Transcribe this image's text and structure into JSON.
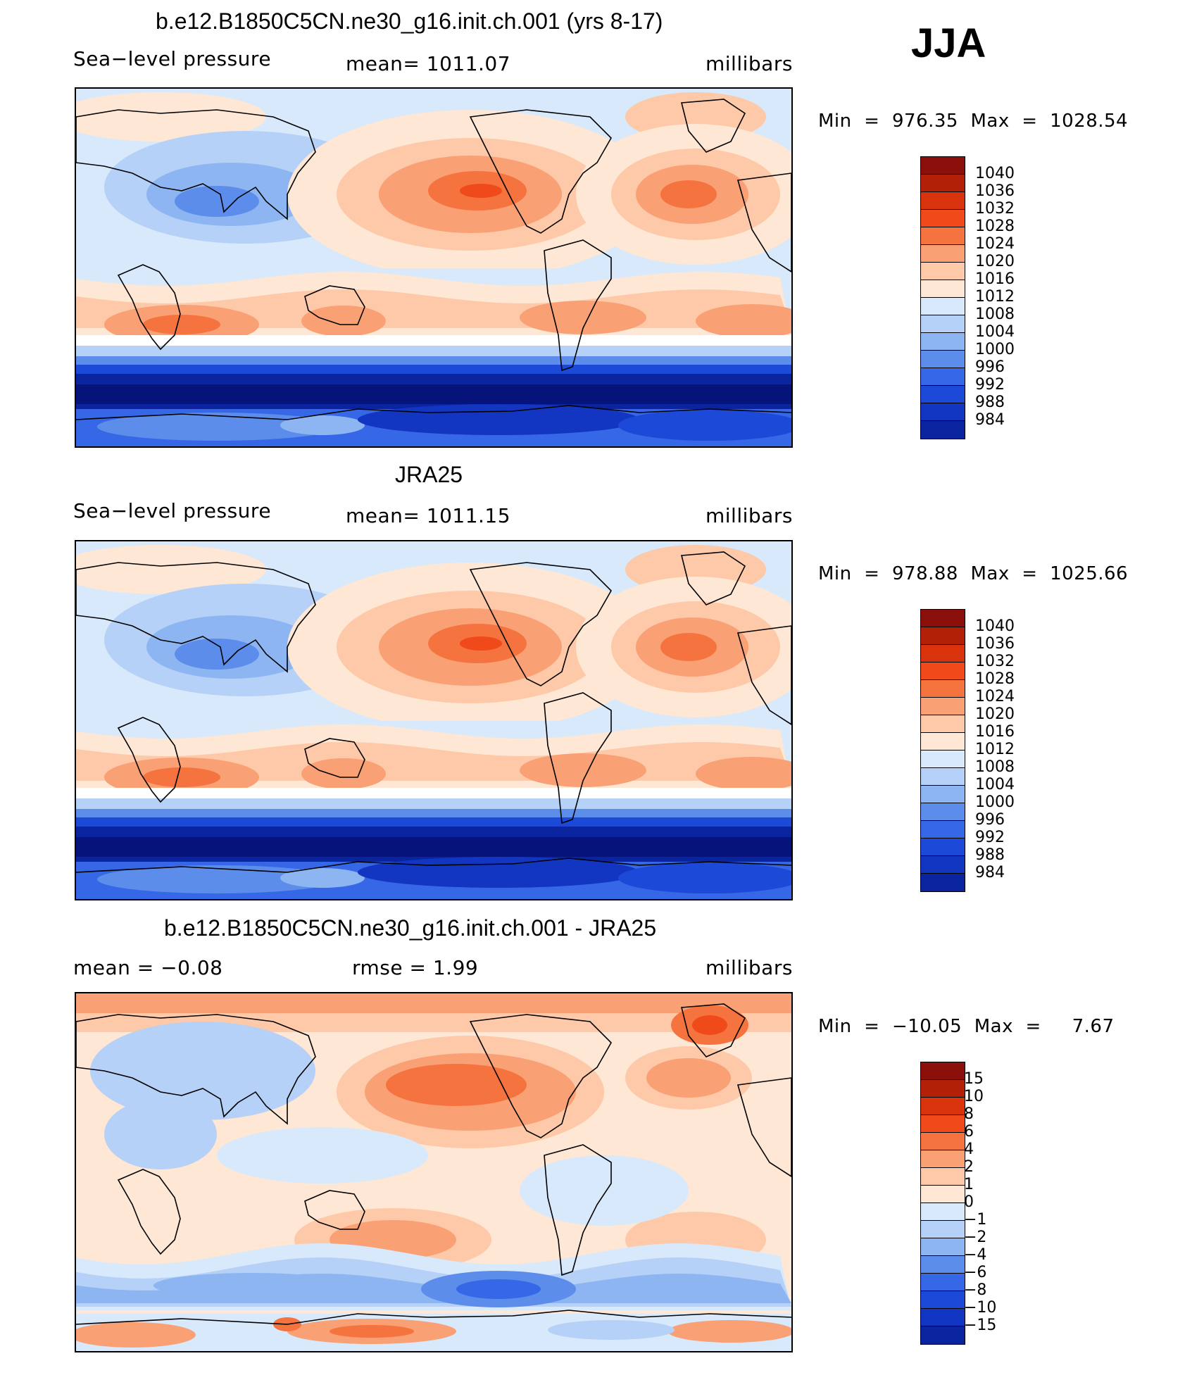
{
  "season": "JJA",
  "panels": [
    {
      "id": "model",
      "title": "b.e12.B1850C5CN.ne30_g16.init.ch.001 (yrs 8-17)",
      "left_label": "Sea−level pressure",
      "center_label": "mean=  1011.07",
      "right_label": "millibars",
      "minmax": "Min  =  976.35  Max  =  1028.54",
      "colorbar": {
        "labels": [
          "1040",
          "1036",
          "1032",
          "1028",
          "1024",
          "1020",
          "1016",
          "1012",
          "1008",
          "1004",
          "1000",
          "996",
          "992",
          "988",
          "984"
        ],
        "colors": [
          "#8b0f0a",
          "#b22008",
          "#d9330d",
          "#f04a1a",
          "#f5733f",
          "#f9a074",
          "#fdc9a8",
          "#fee7d4",
          "#ffffff",
          "#d8e9fb",
          "#b5d1f7",
          "#8db5f2",
          "#5c8deb",
          "#3567e6",
          "#1c49d8",
          "#1236c2",
          "#0a239e",
          "#05137a"
        ]
      },
      "colors_hint": "model"
    },
    {
      "id": "obs",
      "title": "JRA25",
      "left_label": "Sea−level pressure",
      "center_label": "mean=  1011.15",
      "right_label": "millibars",
      "minmax": "Min  =  978.88  Max  =  1025.66",
      "colorbar": {
        "labels": [
          "1040",
          "1036",
          "1032",
          "1028",
          "1024",
          "1020",
          "1016",
          "1012",
          "1008",
          "1004",
          "1000",
          "996",
          "992",
          "988",
          "984"
        ],
        "colors": [
          "#8b0f0a",
          "#b22008",
          "#d9330d",
          "#f04a1a",
          "#f5733f",
          "#f9a074",
          "#fdc9a8",
          "#fee7d4",
          "#ffffff",
          "#d8e9fb",
          "#b5d1f7",
          "#8db5f2",
          "#5c8deb",
          "#3567e6",
          "#1c49d8",
          "#1236c2",
          "#0a239e",
          "#05137a"
        ]
      },
      "colors_hint": "obs"
    },
    {
      "id": "diff",
      "title": "b.e12.B1850C5CN.ne30_g16.init.ch.001 - JRA25",
      "left_label": "mean  =    −0.08",
      "center_label": "rmse  =     1.99",
      "right_label": "millibars",
      "minmax": "Min  =  −10.05  Max  =     7.67",
      "colorbar": {
        "labels": [
          "15",
          "10",
          "8",
          "6",
          "4",
          "2",
          "1",
          "0",
          "−1",
          "−2",
          "−4",
          "−6",
          "−8",
          "−10",
          "−15"
        ],
        "colors": [
          "#8b0f0a",
          "#b22008",
          "#d9330d",
          "#f04a1a",
          "#f5733f",
          "#f9a074",
          "#fdc9a8",
          "#fee7d4",
          "#ffffff",
          "#d8e9fb",
          "#b5d1f7",
          "#8db5f2",
          "#5c8deb",
          "#3567e6",
          "#1c49d8",
          "#1236c2",
          "#0a239e",
          "#05137a"
        ]
      },
      "colors_hint": "diff"
    }
  ]
}
